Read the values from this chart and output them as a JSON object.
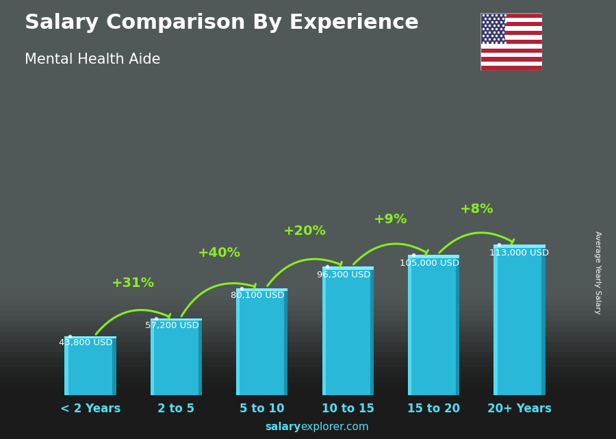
{
  "title": "Salary Comparison By Experience",
  "subtitle": "Mental Health Aide",
  "categories": [
    "< 2 Years",
    "2 to 5",
    "5 to 10",
    "10 to 15",
    "15 to 20",
    "20+ Years"
  ],
  "values": [
    43800,
    57200,
    80100,
    96300,
    105000,
    113000
  ],
  "value_labels": [
    "43,800 USD",
    "57,200 USD",
    "80,100 USD",
    "96,300 USD",
    "105,000 USD",
    "113,000 USD"
  ],
  "pct_changes": [
    "+31%",
    "+40%",
    "+20%",
    "+9%",
    "+8%"
  ],
  "bar_color_main": "#29b8d8",
  "bar_color_light": "#55daf5",
  "bar_color_dark": "#1a90aa",
  "bar_color_top": "#7eeeff",
  "bg_color": "#6a7a7a",
  "text_color": "#ffffff",
  "green_color": "#88ee22",
  "label_color": "#ffffff",
  "ylabel": "Average Yearly Salary",
  "footer_salary": "salary",
  "footer_rest": "explorer.com",
  "figsize": [
    9.0,
    6.41
  ],
  "dpi": 100,
  "bar_width": 0.6
}
